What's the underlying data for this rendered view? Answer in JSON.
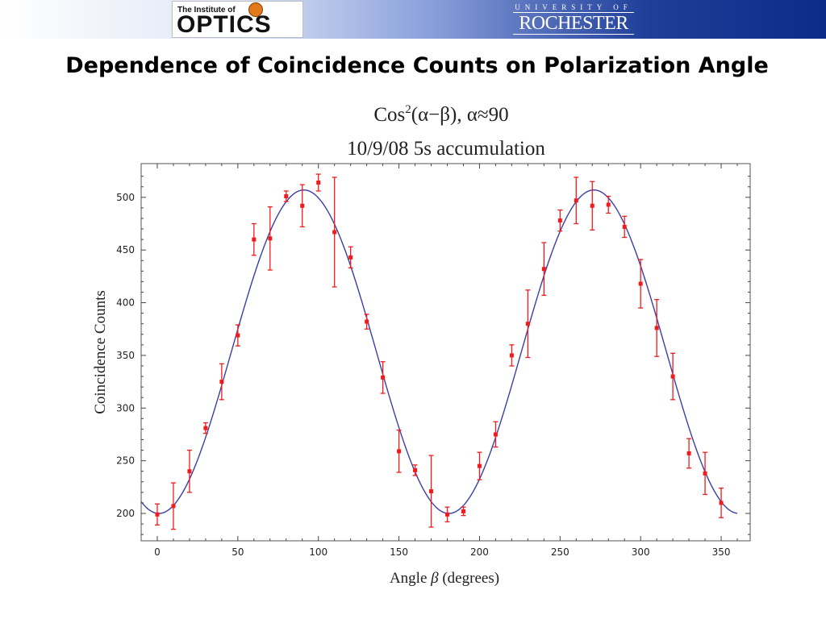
{
  "header": {
    "optics_logo_small": "The Institute of",
    "optics_logo_big": "OPTICS",
    "university_small": "UNIVERSITY OF",
    "university_name": "ROCHESTER"
  },
  "slide_title": "Dependence of Coincidence Counts on Polarization Angle",
  "chart_data": {
    "type": "scatter",
    "title_line1_prefix": "Cos",
    "title_line1_sup": "2",
    "title_line1_rest": "(α−β), α≈90",
    "title_line2": "10/9/08 5s accumulation",
    "xlabel_prefix": "Angle ",
    "xlabel_symbol": "β",
    "xlabel_suffix": " (degrees)",
    "ylabel": "Coincidence Counts",
    "xlim": [
      -10,
      368
    ],
    "ylim": [
      174,
      532
    ],
    "x_ticks": [
      0,
      50,
      100,
      150,
      200,
      250,
      300,
      350
    ],
    "x_tick_labels": [
      "0",
      "50",
      "100",
      "150",
      "200",
      "250",
      "300",
      "350"
    ],
    "y_ticks": [
      200,
      250,
      300,
      350,
      400,
      450,
      500
    ],
    "y_tick_labels": [
      "200",
      "250",
      "300",
      "350",
      "400",
      "450",
      "500"
    ],
    "grid": false,
    "series": [
      {
        "kind": "measured",
        "color": "#ee1c1c",
        "x": [
          0,
          10,
          20,
          30,
          40,
          50,
          60,
          70,
          80,
          90,
          100,
          110,
          120,
          130,
          140,
          150,
          160,
          170,
          180,
          190,
          200,
          210,
          220,
          230,
          240,
          250,
          260,
          270,
          280,
          290,
          300,
          310,
          320,
          330,
          340,
          350
        ],
        "y": [
          199,
          207,
          240,
          281,
          325,
          369,
          460,
          461,
          501,
          492,
          514,
          467,
          443,
          382,
          329,
          259,
          241,
          221,
          199,
          202,
          245,
          275,
          350,
          380,
          432,
          478,
          497,
          492,
          493,
          472,
          418,
          376,
          330,
          257,
          238,
          210
        ],
        "err": [
          10,
          22,
          20,
          5,
          17,
          10,
          15,
          30,
          5,
          20,
          8,
          52,
          10,
          7,
          15,
          20,
          5,
          34,
          7,
          4,
          13,
          12,
          10,
          32,
          25,
          10,
          22,
          23,
          8,
          10,
          23,
          27,
          22,
          14,
          20,
          14
        ]
      },
      {
        "kind": "fit",
        "color": "#3a3fa8",
        "formula": "cos^2",
        "baseline": 200,
        "amplitude": 307,
        "alpha_deg": 91,
        "x_range": [
          -10,
          360
        ]
      }
    ]
  }
}
